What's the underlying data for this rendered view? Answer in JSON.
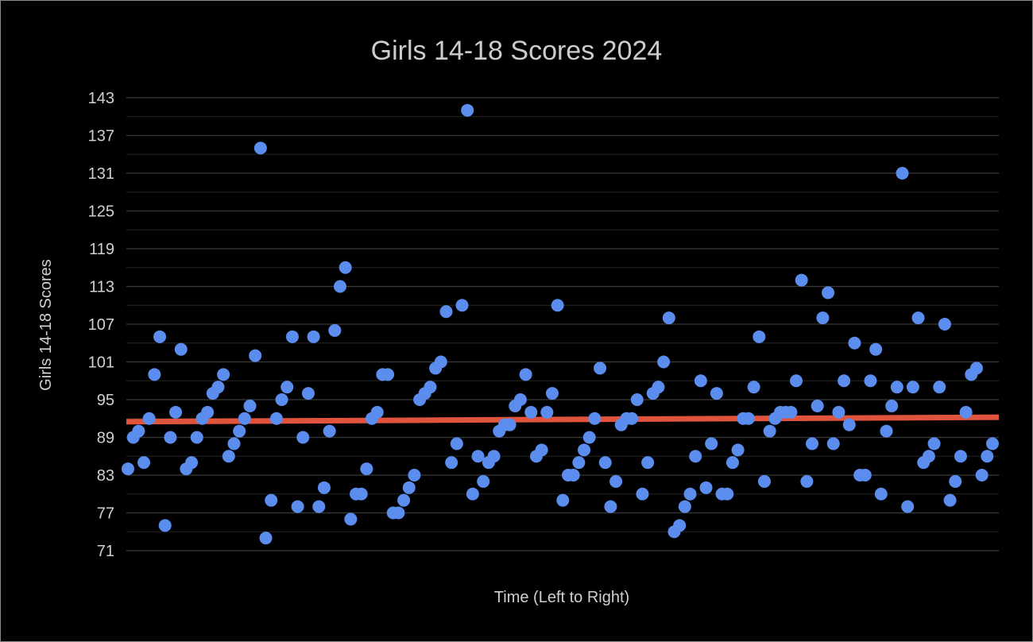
{
  "chart_data": {
    "type": "scatter",
    "title": "Girls 14-18 Scores 2024",
    "xlabel": "Time (Left to Right)",
    "ylabel": "Girls 14-18 Scores",
    "ylim": [
      71,
      143
    ],
    "yticks": [
      "143",
      "137",
      "131",
      "125",
      "119",
      "113",
      "107",
      "101",
      "95",
      "89",
      "83",
      "77",
      "71"
    ],
    "grid": true,
    "legend": "none",
    "point_color": "#5b8def",
    "trendline_color": "#e0533d",
    "trendline": {
      "start": 91.5,
      "end": 92.2
    },
    "series": [
      {
        "values": [
          84,
          89,
          90,
          85,
          92,
          99,
          105,
          75,
          89,
          93,
          103,
          84,
          85,
          89,
          92,
          93,
          96,
          97,
          99,
          86,
          88,
          90,
          92,
          94,
          102,
          135,
          73,
          79,
          92,
          95,
          97,
          105,
          78,
          89,
          96,
          105,
          78,
          81,
          90,
          106,
          113,
          116,
          76,
          80,
          80,
          84,
          92,
          93,
          99,
          99,
          77,
          77,
          79,
          81,
          83,
          95,
          96,
          97,
          100,
          101,
          109,
          85,
          88,
          110,
          141,
          80,
          86,
          82,
          85,
          86,
          90,
          91,
          91,
          94,
          95,
          99,
          93,
          86,
          87,
          93,
          96,
          110,
          79,
          83,
          83,
          85,
          87,
          89,
          92,
          100,
          85,
          78,
          82,
          91,
          92,
          92,
          95,
          80,
          85,
          96,
          97,
          101,
          108,
          74,
          75,
          78,
          80,
          86,
          98,
          81,
          88,
          96,
          80,
          80,
          85,
          87,
          92,
          92,
          97,
          105,
          82,
          90,
          92,
          93,
          93,
          93,
          98,
          114,
          82,
          88,
          94,
          108,
          112,
          88,
          93,
          98,
          91,
          104,
          83,
          83,
          98,
          103,
          80,
          90,
          94,
          97,
          131,
          78,
          97,
          108,
          85,
          86,
          88,
          97,
          107,
          79,
          82,
          86,
          93,
          99,
          100,
          83,
          86,
          88
        ]
      }
    ]
  }
}
